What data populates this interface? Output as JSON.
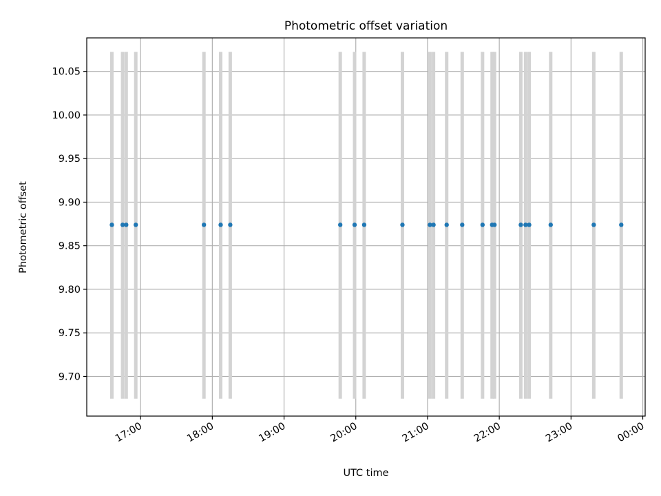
{
  "chart_data": {
    "type": "scatter",
    "title": "Photometric offset variation",
    "xlabel": "UTC time",
    "ylabel": "Photometric offset",
    "x_axis": {
      "kind": "time",
      "range": [
        "16:15",
        "00:02"
      ],
      "ticks": [
        "17:00",
        "18:00",
        "19:00",
        "20:00",
        "21:00",
        "22:00",
        "23:00",
        "00:00"
      ]
    },
    "y_axis": {
      "range": [
        9.6545,
        10.0885
      ],
      "ticks": [
        "9.70",
        "9.75",
        "9.80",
        "9.85",
        "9.90",
        "9.95",
        "10.00",
        "10.05"
      ]
    },
    "grid": true,
    "colors": {
      "points": "#1f77b4",
      "bands": "#d3d3d3",
      "grid": "#b0b0b0"
    },
    "bands": {
      "y_range": [
        9.6745,
        10.0725
      ],
      "x": [
        "16:36",
        "16:45",
        "16:48",
        "16:56",
        "17:53",
        "18:07",
        "18:15",
        "19:47",
        "19:59",
        "20:07",
        "20:39",
        "21:02",
        "21:05",
        "21:16",
        "21:29",
        "21:46",
        "21:54",
        "21:56",
        "22:18",
        "22:22",
        "22:25",
        "22:43",
        "23:19",
        "23:42"
      ]
    },
    "series": [
      {
        "x": [
          "16:36",
          "16:45",
          "16:48",
          "16:56",
          "17:53",
          "18:07",
          "18:15",
          "19:47",
          "19:59",
          "20:07",
          "20:39",
          "21:02",
          "21:05",
          "21:16",
          "21:29",
          "21:46",
          "21:54",
          "21:56",
          "22:18",
          "22:22",
          "22:25",
          "22:43",
          "23:19",
          "23:42"
        ],
        "y": [
          9.874,
          9.874,
          9.874,
          9.874,
          9.874,
          9.874,
          9.874,
          9.874,
          9.874,
          9.874,
          9.874,
          9.874,
          9.874,
          9.874,
          9.874,
          9.874,
          9.874,
          9.874,
          9.874,
          9.874,
          9.874,
          9.874,
          9.874,
          9.874
        ]
      }
    ]
  }
}
